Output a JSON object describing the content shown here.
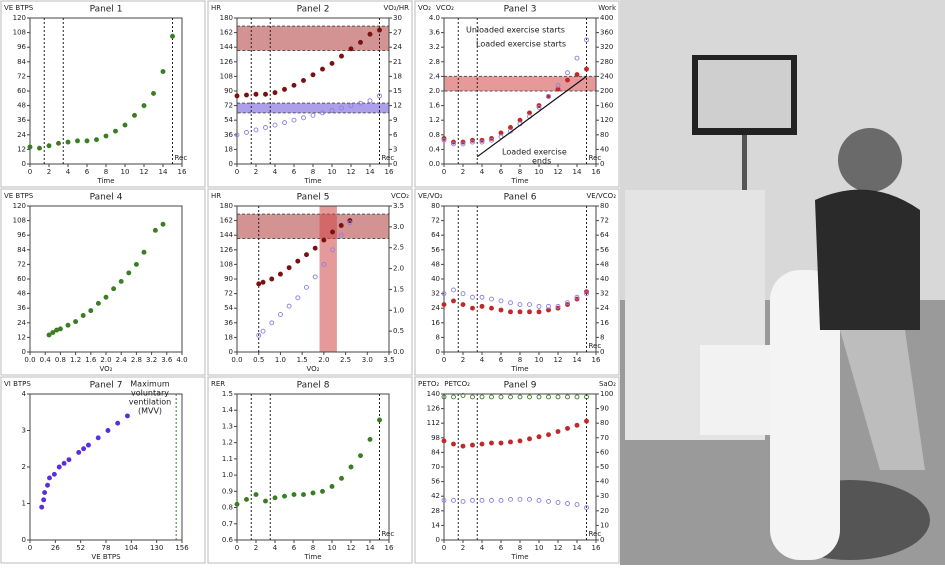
{
  "chart_data": [
    {
      "type": "scatter",
      "title": "Panel 1",
      "xlabel": "Time",
      "ylabel": [
        "VE BTPS"
      ],
      "ylabel_colors": [
        "#3a7d22"
      ],
      "xlim": [
        0,
        16
      ],
      "xticks": [
        0,
        2,
        4,
        6,
        8,
        10,
        12,
        14,
        16
      ],
      "ylim": [
        0,
        120
      ],
      "yticks": [
        0,
        12,
        24,
        36,
        48,
        60,
        72,
        84,
        96,
        108,
        120
      ],
      "vlines": [
        1.5,
        3.5,
        {
          "value": 15,
          "label": "Rec"
        }
      ],
      "series": [
        {
          "color": "#3a7d22",
          "x": [
            0,
            1,
            2,
            3,
            4,
            5,
            6,
            7,
            8,
            9,
            10,
            11,
            12,
            13,
            14,
            15
          ],
          "values": [
            14,
            13,
            15,
            17,
            18,
            19,
            19,
            20,
            23,
            27,
            32,
            40,
            48,
            58,
            76,
            105
          ]
        }
      ]
    },
    {
      "type": "scatter",
      "title": "Panel 2",
      "xlabel": "Time",
      "ylabel": [
        "HR"
      ],
      "ylabel_colors": [
        "#7a1010"
      ],
      "y2label": [
        "VO₂/HR"
      ],
      "y2label_colors": [
        "#6a50d8"
      ],
      "xlim": [
        0,
        16
      ],
      "xticks": [
        0,
        2,
        4,
        6,
        8,
        10,
        12,
        14,
        16
      ],
      "ylim": [
        0,
        180
      ],
      "yticks": [
        0,
        18,
        36,
        54,
        72,
        90,
        108,
        126,
        144,
        162,
        180
      ],
      "y2lim": [
        0,
        30
      ],
      "y2ticks": [
        0,
        3,
        6,
        9,
        12,
        15,
        18,
        21,
        24,
        27,
        30
      ],
      "vlines": [
        1.5,
        3.5,
        {
          "value": 15,
          "label": "Rec"
        }
      ],
      "hbands": [
        {
          "from": 140,
          "to": 170,
          "color": "#b03a3a"
        },
        {
          "from": 10.5,
          "to": 12.5,
          "color": "#6a50d8",
          "axis": "y2"
        }
      ],
      "series": [
        {
          "color": "#7a1010",
          "x": [
            0,
            1,
            2,
            3,
            4,
            5,
            6,
            7,
            8,
            9,
            10,
            11,
            12,
            13,
            14,
            15
          ],
          "values": [
            84,
            85,
            86,
            86,
            88,
            92,
            97,
            103,
            110,
            117,
            124,
            133,
            142,
            150,
            160,
            165
          ]
        },
        {
          "color": "#8f80e0",
          "axis": "y2",
          "open": true,
          "x": [
            0,
            1,
            2,
            3,
            4,
            5,
            6,
            7,
            8,
            9,
            10,
            11,
            12,
            13,
            14,
            15
          ],
          "values": [
            6,
            6.5,
            7,
            7.5,
            8,
            8.5,
            9,
            9.5,
            10,
            10.5,
            11,
            11.5,
            12,
            12.5,
            13,
            14
          ]
        }
      ]
    },
    {
      "type": "scatter",
      "title": "Panel 3",
      "xlabel": "Time",
      "ylabel": [
        "VO₂",
        "VCO₂"
      ],
      "ylabel_colors": [
        "#c0282a",
        "#6a50d8"
      ],
      "y2label": [
        "Work"
      ],
      "y2label_colors": [
        "#222222"
      ],
      "xlim": [
        0,
        16
      ],
      "xticks": [
        0,
        2,
        4,
        6,
        8,
        10,
        12,
        14,
        16
      ],
      "ylim": [
        0,
        4
      ],
      "yticks": [
        {
          "value": 0,
          "label": "0.0"
        },
        0.4,
        0.8,
        1.2,
        1.6,
        {
          "value": 2,
          "label": "2.0"
        },
        2.4,
        2.8,
        3.2,
        3.6,
        {
          "value": 4,
          "label": "4.0"
        }
      ],
      "y2lim": [
        0,
        400
      ],
      "y2ticks": [
        0,
        40,
        80,
        120,
        160,
        200,
        240,
        280,
        320,
        360,
        400
      ],
      "vlines": [
        1.5,
        3.5,
        {
          "value": 15,
          "label": "Rec"
        }
      ],
      "hbands": [
        {
          "from": 2.0,
          "to": 2.4,
          "color": "#d04545"
        }
      ],
      "annotations": [
        "Unloaded exercise starts",
        "Loaded exercise starts",
        "Loaded exercise",
        "ends"
      ],
      "series": [
        {
          "color": "#c0282a",
          "x": [
            0,
            1,
            2,
            3,
            4,
            5,
            6,
            7,
            8,
            9,
            10,
            11,
            12,
            13,
            14,
            15
          ],
          "values": [
            0.7,
            0.6,
            0.6,
            0.65,
            0.65,
            0.7,
            0.85,
            1.0,
            1.2,
            1.4,
            1.6,
            1.85,
            2.05,
            2.3,
            2.45,
            2.6
          ]
        },
        {
          "color": "#8f80e0",
          "open": true,
          "x": [
            0,
            1,
            2,
            3,
            4,
            5,
            6,
            7,
            8,
            9,
            10,
            11,
            12,
            13,
            14,
            15
          ],
          "values": [
            0.65,
            0.55,
            0.55,
            0.6,
            0.6,
            0.65,
            0.75,
            0.9,
            1.1,
            1.3,
            1.55,
            1.85,
            2.15,
            2.5,
            2.9,
            3.4
          ]
        },
        {
          "color": "#111111",
          "axis": "y2",
          "style": "line",
          "x": [
            3.5,
            15
          ],
          "values": [
            20,
            240
          ]
        }
      ]
    },
    {
      "type": "scatter",
      "title": "Panel 4",
      "xlabel": "VO₂",
      "ylabel": [
        "VE BTPS"
      ],
      "ylabel_colors": [
        "#3a7d22"
      ],
      "xlim": [
        0,
        4
      ],
      "xticks": [
        {
          "value": 0,
          "label": "0.0"
        },
        0.4,
        0.8,
        1.2,
        1.6,
        {
          "value": 2,
          "label": "2.0"
        },
        2.4,
        2.8,
        3.2,
        3.6,
        {
          "value": 4,
          "label": "4.0"
        }
      ],
      "ylim": [
        0,
        120
      ],
      "yticks": [
        0,
        12,
        24,
        36,
        48,
        60,
        72,
        84,
        96,
        108,
        120
      ],
      "series": [
        {
          "color": "#3a7d22",
          "x": [
            0.5,
            0.6,
            0.7,
            0.8,
            1.0,
            1.2,
            1.4,
            1.6,
            1.8,
            2.0,
            2.2,
            2.4,
            2.6,
            2.8,
            3.0,
            3.3,
            3.5
          ],
          "values": [
            14,
            16,
            18,
            19,
            22,
            25,
            30,
            34,
            40,
            45,
            52,
            58,
            65,
            72,
            82,
            100,
            105
          ]
        }
      ]
    },
    {
      "type": "scatter",
      "title": "Panel 5",
      "xlabel": "VO₂",
      "ylabel": [
        "HR"
      ],
      "ylabel_colors": [
        "#7a1010"
      ],
      "y2label": [
        "VCO₂"
      ],
      "y2label_colors": [
        "#6a50d8"
      ],
      "xlim": [
        0,
        3.5
      ],
      "xticks": [
        {
          "value": 0,
          "label": "0.0"
        },
        0.5,
        {
          "value": 1,
          "label": "1.0"
        },
        1.5,
        {
          "value": 2,
          "label": "2.0"
        },
        2.5,
        {
          "value": 3,
          "label": "3.0"
        },
        3.5
      ],
      "ylim": [
        0,
        180
      ],
      "yticks": [
        0,
        18,
        36,
        54,
        72,
        90,
        108,
        126,
        144,
        162,
        180
      ],
      "y2lim": [
        0,
        3.5
      ],
      "y2ticks": [
        {
          "value": 0,
          "label": "0.0"
        },
        0.5,
        {
          "value": 1,
          "label": "1.0"
        },
        1.5,
        {
          "value": 2,
          "label": "2.0"
        },
        2.5,
        {
          "value": 3,
          "label": "3.0"
        },
        3.5
      ],
      "vlines": [
        0.5
      ],
      "hbands": [
        {
          "from": 140,
          "to": 170,
          "color": "#b03a3a"
        }
      ],
      "vbands": [
        {
          "from": 1.9,
          "to": 2.3,
          "color": "#d04545"
        }
      ],
      "series": [
        {
          "color": "#7a1010",
          "x": [
            0.5,
            0.6,
            0.8,
            1.0,
            1.2,
            1.4,
            1.6,
            1.8,
            2.0,
            2.2,
            2.4,
            2.6
          ],
          "values": [
            84,
            86,
            90,
            96,
            104,
            112,
            120,
            128,
            138,
            148,
            156,
            162
          ]
        },
        {
          "color": "#8f80e0",
          "axis": "y2",
          "open": true,
          "x": [
            0.5,
            0.6,
            0.8,
            1.0,
            1.2,
            1.4,
            1.6,
            1.8,
            2.0,
            2.2,
            2.4,
            2.6
          ],
          "values": [
            0.4,
            0.5,
            0.7,
            0.9,
            1.1,
            1.3,
            1.55,
            1.8,
            2.1,
            2.45,
            2.8,
            3.1
          ]
        }
      ]
    },
    {
      "type": "scatter",
      "title": "Panel 6",
      "xlabel": "Time",
      "ylabel": [
        "VE/VO₂"
      ],
      "ylabel_colors": [
        "#c0282a"
      ],
      "y2label": [
        "VE/VCO₂"
      ],
      "y2label_colors": [
        "#6a50d8"
      ],
      "xlim": [
        0,
        16
      ],
      "xticks": [
        0,
        2,
        4,
        6,
        8,
        10,
        12,
        14,
        16
      ],
      "ylim": [
        0,
        80
      ],
      "yticks": [
        0,
        8,
        16,
        24,
        32,
        40,
        48,
        56,
        64,
        72,
        80
      ],
      "y2lim": [
        0,
        80
      ],
      "y2ticks": [
        0,
        8,
        16,
        24,
        32,
        40,
        48,
        56,
        64,
        72,
        80
      ],
      "vlines": [
        1.5,
        3.5,
        {
          "value": 15,
          "label": "Rec"
        }
      ],
      "series": [
        {
          "color": "#c0282a",
          "x": [
            0,
            1,
            2,
            3,
            4,
            5,
            6,
            7,
            8,
            9,
            10,
            11,
            12,
            13,
            14,
            15
          ],
          "values": [
            26,
            28,
            26,
            24,
            25,
            24,
            23,
            22,
            22,
            22,
            22,
            23,
            24,
            26,
            29,
            33
          ]
        },
        {
          "color": "#8f80e0",
          "axis": "y2",
          "open": true,
          "x": [
            0,
            1,
            2,
            3,
            4,
            5,
            6,
            7,
            8,
            9,
            10,
            11,
            12,
            13,
            14,
            15
          ],
          "values": [
            32,
            34,
            32,
            30,
            30,
            29,
            28,
            27,
            26,
            26,
            25,
            25,
            25,
            27,
            30,
            32
          ]
        }
      ]
    },
    {
      "type": "scatter",
      "title": "Panel 7",
      "xlabel": "VE BTPS",
      "xlabel_color": "#3a7d22",
      "ylabel": [
        "VI BTPS"
      ],
      "ylabel_colors": [
        "#5a2ee0"
      ],
      "xlim": [
        0,
        156
      ],
      "xticks": [
        0,
        26,
        52,
        78,
        104,
        130,
        156
      ],
      "ylim": [
        0,
        4
      ],
      "yticks": [
        0,
        1,
        2,
        3,
        4
      ],
      "vlines": [
        150
      ],
      "vline_color": "#3a7d22",
      "annotations": [
        "Maximum",
        "voluntary",
        "ventilation",
        "(MVV)"
      ],
      "series": [
        {
          "color": "#5a2ee0",
          "x": [
            12,
            14,
            15,
            18,
            20,
            25,
            30,
            35,
            40,
            50,
            55,
            60,
            70,
            80,
            90,
            100
          ],
          "values": [
            0.9,
            1.1,
            1.3,
            1.5,
            1.7,
            1.8,
            2.0,
            2.1,
            2.2,
            2.4,
            2.5,
            2.6,
            2.8,
            3.0,
            3.2,
            3.4
          ]
        }
      ]
    },
    {
      "type": "scatter",
      "title": "Panel 8",
      "xlabel": "Time",
      "ylabel": [
        "RER"
      ],
      "ylabel_colors": [
        "#3a7d22"
      ],
      "xlim": [
        0,
        16
      ],
      "xticks": [
        0,
        2,
        4,
        6,
        8,
        10,
        12,
        14,
        16
      ],
      "ylim": [
        0.6,
        1.5
      ],
      "yticks": [
        0.6,
        0.7,
        0.8,
        0.9,
        {
          "value": 1,
          "label": "1.0"
        },
        1.1,
        1.2,
        1.3,
        1.4,
        1.5
      ],
      "vlines": [
        1.5,
        3.5,
        {
          "value": 15,
          "label": "Rec"
        }
      ],
      "series": [
        {
          "color": "#3a7d22",
          "x": [
            0,
            1,
            2,
            3,
            4,
            5,
            6,
            7,
            8,
            9,
            10,
            11,
            12,
            13,
            14,
            15
          ],
          "values": [
            0.82,
            0.85,
            0.88,
            0.84,
            0.86,
            0.87,
            0.88,
            0.88,
            0.89,
            0.9,
            0.93,
            0.98,
            1.05,
            1.12,
            1.22,
            1.34
          ]
        }
      ]
    },
    {
      "type": "scatter",
      "title": "Panel 9",
      "xlabel": "Time",
      "ylabel": [
        "PETO₂",
        "PETCO₂"
      ],
      "ylabel_colors": [
        "#c0282a",
        "#6a50d8"
      ],
      "y2label": [
        "SaO₂"
      ],
      "y2label_colors": [
        "#3a7d22"
      ],
      "xlim": [
        0,
        16
      ],
      "xticks": [
        0,
        2,
        4,
        6,
        8,
        10,
        12,
        14,
        16
      ],
      "ylim": [
        0,
        140
      ],
      "yticks": [
        0,
        14,
        28,
        42,
        56,
        70,
        84,
        98,
        112,
        126,
        140
      ],
      "y2lim": [
        0,
        100
      ],
      "y2ticks": [
        0,
        10,
        20,
        30,
        40,
        50,
        60,
        70,
        80,
        90,
        100
      ],
      "vlines": [
        1.5,
        3.5,
        {
          "value": 15,
          "label": "Rec"
        }
      ],
      "series": [
        {
          "color": "#3a7d22",
          "axis": "y2",
          "open": true,
          "x": [
            0,
            1,
            2,
            3,
            4,
            5,
            6,
            7,
            8,
            9,
            10,
            11,
            12,
            13,
            14,
            15
          ],
          "values": [
            98,
            98,
            99,
            98,
            98,
            98,
            98,
            98,
            98,
            98,
            98,
            98,
            98,
            98,
            98,
            98
          ]
        },
        {
          "color": "#c0282a",
          "x": [
            0,
            1,
            2,
            3,
            4,
            5,
            6,
            7,
            8,
            9,
            10,
            11,
            12,
            13,
            14,
            15
          ],
          "values": [
            95,
            92,
            90,
            91,
            92,
            93,
            93,
            94,
            95,
            97,
            99,
            101,
            104,
            107,
            110,
            114
          ]
        },
        {
          "color": "#8f80e0",
          "open": true,
          "x": [
            0,
            1,
            2,
            3,
            4,
            5,
            6,
            7,
            8,
            9,
            10,
            11,
            12,
            13,
            14,
            15
          ],
          "values": [
            38,
            38,
            37,
            38,
            38,
            38,
            38,
            39,
            39,
            39,
            38,
            37,
            36,
            35,
            34,
            31
          ]
        }
      ]
    }
  ]
}
